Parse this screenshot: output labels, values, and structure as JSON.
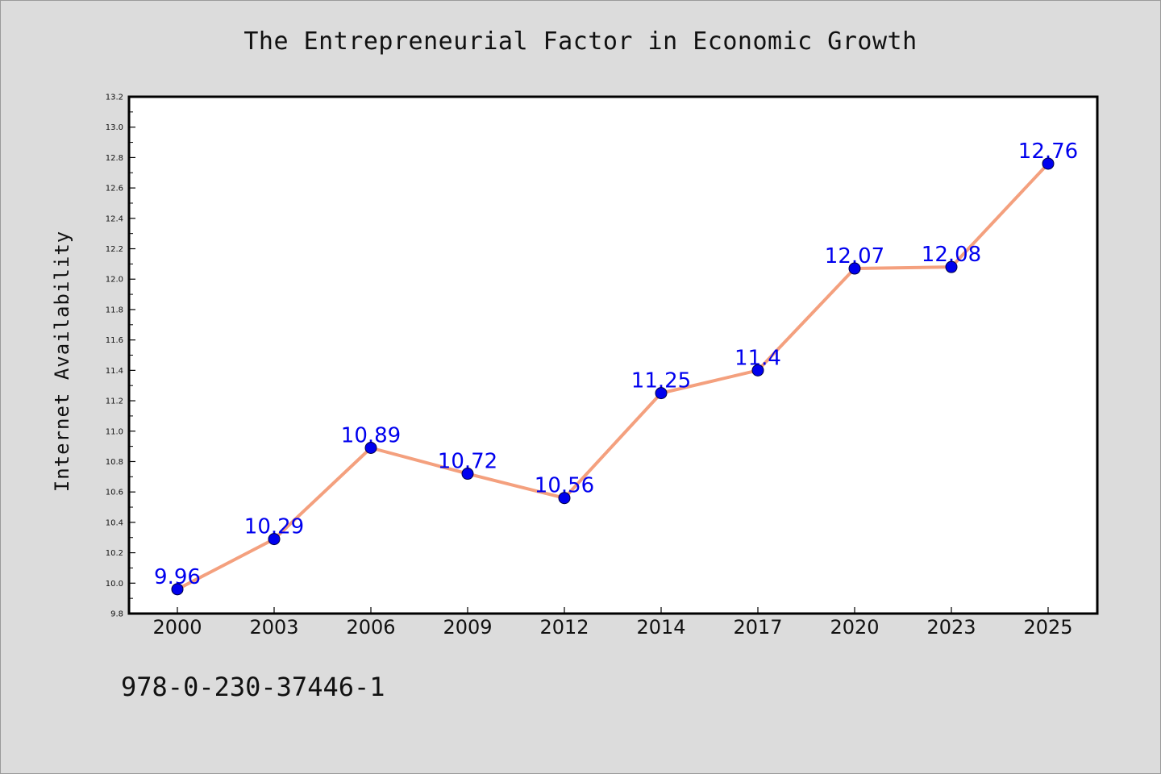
{
  "title": "The Entrepreneurial Factor in Economic Growth",
  "isbn": "978-0-230-37446-1",
  "colors": {
    "background": "#dcdcdc",
    "plot_background": "#ffffff",
    "line": "#f4a07e",
    "marker": "#0000ee",
    "data_label": "#0000ee"
  },
  "chart_data": {
    "type": "line",
    "title": "The Entrepreneurial Factor in Economic Growth",
    "xlabel": "",
    "ylabel": "Internet Availability",
    "categories": [
      "2000",
      "2003",
      "2006",
      "2009",
      "2012",
      "2014",
      "2017",
      "2020",
      "2023",
      "2025"
    ],
    "series": [
      {
        "values": [
          9.96,
          10.29,
          10.89,
          10.72,
          10.56,
          11.25,
          11.4,
          12.07,
          12.08,
          12.76
        ],
        "labels": [
          "9.96",
          "10.29",
          "10.89",
          "10.72",
          "10.56",
          "11.25",
          "11.4",
          "12.07",
          "12.08",
          "12.76"
        ]
      }
    ],
    "ylim": [
      9.8,
      13.2
    ],
    "yticks": [
      "9.8",
      "10.0",
      "10.2",
      "10.4",
      "10.6",
      "10.8",
      "11.0",
      "11.2",
      "11.4",
      "11.6",
      "11.8",
      "12.0",
      "12.2",
      "12.4",
      "12.6",
      "12.8",
      "13.0",
      "13.2"
    ],
    "grid": false,
    "legend": "none"
  }
}
